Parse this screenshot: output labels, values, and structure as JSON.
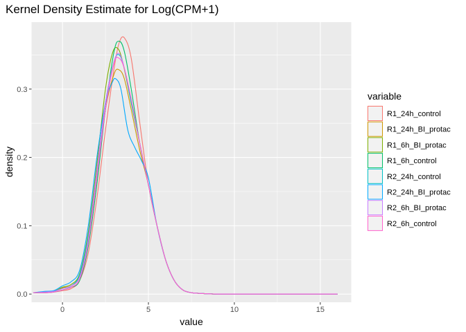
{
  "chart_data": {
    "type": "line",
    "title": "Kernel Density Estimate for Log(CPM+1)",
    "xlabel": "value",
    "ylabel": "density",
    "xlim": [
      -1.8,
      16.8
    ],
    "ylim": [
      -0.012,
      0.398
    ],
    "x_ticks": [
      0,
      5,
      10,
      15
    ],
    "y_ticks": [
      0.0,
      0.1,
      0.2,
      0.3
    ],
    "x_tick_labels": [
      "0",
      "5",
      "10",
      "15"
    ],
    "y_tick_labels": [
      "0.0",
      "0.1",
      "0.2",
      "0.3"
    ],
    "grid": true,
    "legend_position": "right",
    "legend_title": "variable",
    "series": [
      {
        "name": "R1_24h_control",
        "color": "#F8766D",
        "x": [
          -1.7,
          -1,
          -0.5,
          0,
          0.5,
          1,
          1.5,
          2,
          2.5,
          3,
          3.3,
          3.6,
          4,
          4.5,
          5,
          5.5,
          6,
          6.5,
          7,
          7.5,
          8,
          9,
          10,
          12,
          14,
          16
        ],
        "y": [
          0.002,
          0.002,
          0.003,
          0.005,
          0.008,
          0.02,
          0.06,
          0.14,
          0.24,
          0.33,
          0.368,
          0.375,
          0.345,
          0.25,
          0.16,
          0.1,
          0.05,
          0.02,
          0.006,
          0.002,
          0.001,
          0,
          0,
          0,
          0,
          0
        ]
      },
      {
        "name": "R1_24h_BI_protac",
        "color": "#CD9600",
        "x": [
          -1.7,
          -1,
          -0.5,
          0,
          0.5,
          1,
          1.5,
          2,
          2.5,
          3,
          3.3,
          3.6,
          4,
          4.5,
          5,
          5.5,
          6,
          6.5,
          7,
          7.5,
          8,
          9,
          10,
          12,
          14,
          16
        ],
        "y": [
          0.002,
          0.003,
          0.004,
          0.009,
          0.012,
          0.025,
          0.08,
          0.17,
          0.27,
          0.322,
          0.328,
          0.315,
          0.27,
          0.21,
          0.16,
          0.1,
          0.05,
          0.02,
          0.006,
          0.002,
          0.001,
          0,
          0,
          0,
          0,
          0
        ]
      },
      {
        "name": "R1_6h_BI_protac",
        "color": "#7CAE00",
        "x": [
          -1.7,
          -1,
          -0.5,
          0,
          0.5,
          1,
          1.5,
          2,
          2.5,
          2.9,
          3.2,
          3.5,
          4,
          4.5,
          5,
          5.5,
          6,
          6.5,
          7,
          7.5,
          8,
          9,
          10,
          12,
          14,
          16
        ],
        "y": [
          0.002,
          0.003,
          0.004,
          0.01,
          0.014,
          0.03,
          0.09,
          0.19,
          0.3,
          0.352,
          0.36,
          0.34,
          0.28,
          0.22,
          0.16,
          0.1,
          0.05,
          0.02,
          0.006,
          0.002,
          0.001,
          0,
          0,
          0,
          0,
          0
        ]
      },
      {
        "name": "R1_6h_control",
        "color": "#00BE67",
        "x": [
          -1.7,
          -1,
          -0.5,
          0,
          0.5,
          1,
          1.5,
          2,
          2.5,
          3,
          3.3,
          3.6,
          4,
          4.5,
          5,
          5.5,
          6,
          6.5,
          7,
          7.5,
          8,
          9,
          10,
          12,
          14,
          16
        ],
        "y": [
          0.002,
          0.002,
          0.003,
          0.006,
          0.01,
          0.02,
          0.07,
          0.16,
          0.27,
          0.355,
          0.37,
          0.355,
          0.3,
          0.22,
          0.16,
          0.1,
          0.05,
          0.02,
          0.006,
          0.002,
          0.001,
          0,
          0,
          0,
          0,
          0
        ]
      },
      {
        "name": "R2_24h_control",
        "color": "#00BFC4",
        "x": [
          -1.7,
          -1,
          -0.5,
          0,
          0.5,
          1,
          1.5,
          2,
          2.5,
          3,
          3.3,
          3.6,
          4,
          4.5,
          5,
          5.5,
          6,
          6.5,
          7,
          7.5,
          8,
          9,
          10,
          12,
          14,
          16
        ],
        "y": [
          0.002,
          0.003,
          0.004,
          0.008,
          0.012,
          0.028,
          0.085,
          0.18,
          0.28,
          0.34,
          0.35,
          0.33,
          0.28,
          0.22,
          0.16,
          0.1,
          0.05,
          0.02,
          0.006,
          0.002,
          0.001,
          0,
          0,
          0,
          0,
          0
        ]
      },
      {
        "name": "R2_24h_BI_protac",
        "color": "#00A9FF",
        "x": [
          -1.7,
          -1,
          -0.5,
          0,
          0.5,
          1,
          1.5,
          2,
          2.5,
          2.9,
          3.1,
          3.4,
          3.8,
          4.2,
          4.6,
          5,
          5.5,
          6,
          6.5,
          7,
          7.5,
          8,
          9,
          10,
          12,
          14,
          16
        ],
        "y": [
          0.002,
          0.004,
          0.005,
          0.012,
          0.018,
          0.035,
          0.1,
          0.2,
          0.28,
          0.31,
          0.315,
          0.3,
          0.24,
          0.215,
          0.195,
          0.17,
          0.1,
          0.05,
          0.02,
          0.006,
          0.002,
          0.001,
          0,
          0,
          0,
          0,
          0
        ]
      },
      {
        "name": "R2_6h_BI_protac",
        "color": "#C77CFF",
        "x": [
          -1.7,
          -1,
          -0.5,
          0,
          0.5,
          1,
          1.5,
          2,
          2.5,
          2.9,
          3.2,
          3.5,
          4,
          4.5,
          5,
          5.5,
          6,
          6.5,
          7,
          7.5,
          8,
          9,
          10,
          12,
          14,
          16
        ],
        "y": [
          0.002,
          0.003,
          0.004,
          0.008,
          0.012,
          0.025,
          0.08,
          0.18,
          0.28,
          0.33,
          0.352,
          0.34,
          0.285,
          0.22,
          0.16,
          0.1,
          0.05,
          0.02,
          0.006,
          0.002,
          0.001,
          0,
          0,
          0,
          0,
          0
        ]
      },
      {
        "name": "R2_6h_control",
        "color": "#FF61CC",
        "x": [
          -1.7,
          -1,
          -0.5,
          0,
          0.5,
          1,
          1.5,
          2,
          2.5,
          3,
          3.3,
          3.6,
          4,
          4.5,
          5,
          5.5,
          6,
          6.5,
          7,
          7.5,
          8,
          9,
          10,
          12,
          14,
          16
        ],
        "y": [
          0.002,
          0.002,
          0.003,
          0.006,
          0.01,
          0.022,
          0.075,
          0.17,
          0.27,
          0.338,
          0.345,
          0.33,
          0.285,
          0.22,
          0.16,
          0.1,
          0.05,
          0.02,
          0.006,
          0.002,
          0.001,
          0,
          0,
          0,
          0,
          0
        ]
      }
    ]
  }
}
